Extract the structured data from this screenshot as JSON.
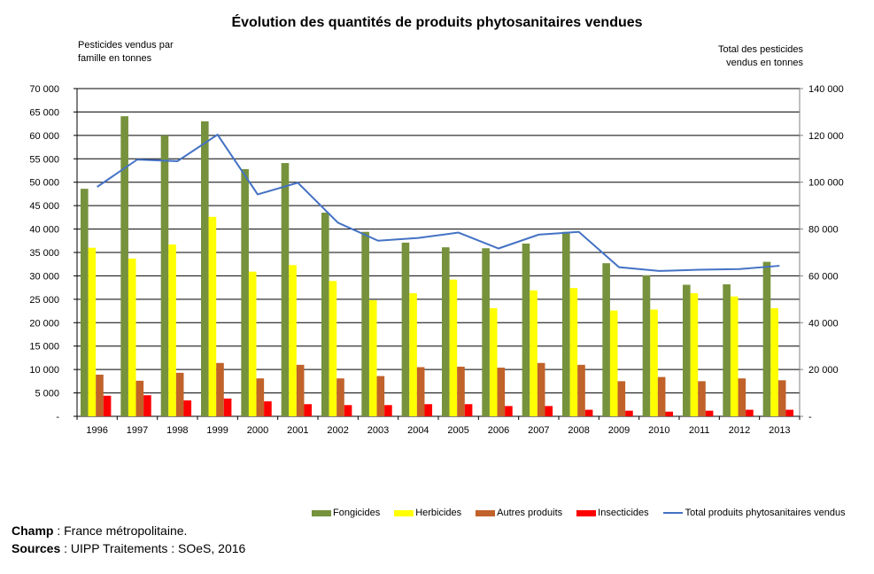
{
  "chart_data": {
    "type": "bar",
    "title": "Évolution des quantités de produits phytosanitaires vendues",
    "ylabel_left": [
      "Pesticides vendus par",
      "famille en tonnes"
    ],
    "ylabel_right": [
      "Total des pesticides",
      "vendus en tonnes"
    ],
    "categories": [
      "1996",
      "1997",
      "1998",
      "1999",
      "2000",
      "2001",
      "2002",
      "2003",
      "2004",
      "2005",
      "2006",
      "2007",
      "2008",
      "2009",
      "2010",
      "2011",
      "2012",
      "2013"
    ],
    "ylim_left": [
      0,
      70000
    ],
    "ylim_right": [
      0,
      140000
    ],
    "yticks_left": [
      "-",
      "5 000",
      "10 000",
      "15 000",
      "20 000",
      "25 000",
      "30 000",
      "35 000",
      "40 000",
      "45 000",
      "50 000",
      "55 000",
      "60 000",
      "65 000",
      "70 000"
    ],
    "yticks_right": [
      "-",
      "20 000",
      "40 000",
      "60 000",
      "80 000",
      "100 000",
      "120 000",
      "140 000"
    ],
    "grid": true,
    "legend_position": "bottom",
    "series": [
      {
        "name": "Fongicides",
        "type": "bar",
        "axis": "left",
        "color": "#76923c",
        "values": [
          48600,
          64100,
          60000,
          63000,
          52800,
          54100,
          43500,
          39400,
          37100,
          36100,
          35900,
          36900,
          39400,
          32700,
          30100,
          28100,
          28200,
          33000
        ]
      },
      {
        "name": "Herbicides",
        "type": "bar",
        "axis": "left",
        "color": "#ffff00",
        "values": [
          36000,
          33700,
          36700,
          42600,
          30900,
          32300,
          28900,
          24800,
          26300,
          29200,
          23100,
          26900,
          27400,
          22600,
          22800,
          26300,
          25600,
          23100
        ]
      },
      {
        "name": "Autres produits",
        "type": "bar",
        "axis": "left",
        "color": "#c0622a",
        "values": [
          8900,
          7600,
          9300,
          11400,
          8100,
          11000,
          8100,
          8600,
          10500,
          10600,
          10400,
          11400,
          11000,
          7500,
          8400,
          7500,
          8100,
          7700
        ]
      },
      {
        "name": "Insecticides",
        "type": "bar",
        "axis": "left",
        "color": "#ff0000",
        "values": [
          4400,
          4500,
          3400,
          3800,
          3200,
          2600,
          2400,
          2400,
          2600,
          2600,
          2200,
          2200,
          1400,
          1200,
          1000,
          1200,
          1400,
          1400
        ]
      },
      {
        "name": "Total produits phytosanitaires vendus",
        "type": "line",
        "axis": "right",
        "color": "#4472c4",
        "values": [
          98000,
          109700,
          109000,
          120300,
          94800,
          99800,
          82700,
          75000,
          76200,
          78500,
          71700,
          77600,
          78800,
          63700,
          62100,
          62600,
          62900,
          64300
        ]
      }
    ]
  },
  "footer": {
    "champ_label": "Champ",
    "champ_text": " : France métropolitaine.",
    "sources_label": "Sources",
    "sources_text": " : UIPP Traitements : SOeS, 2016"
  }
}
